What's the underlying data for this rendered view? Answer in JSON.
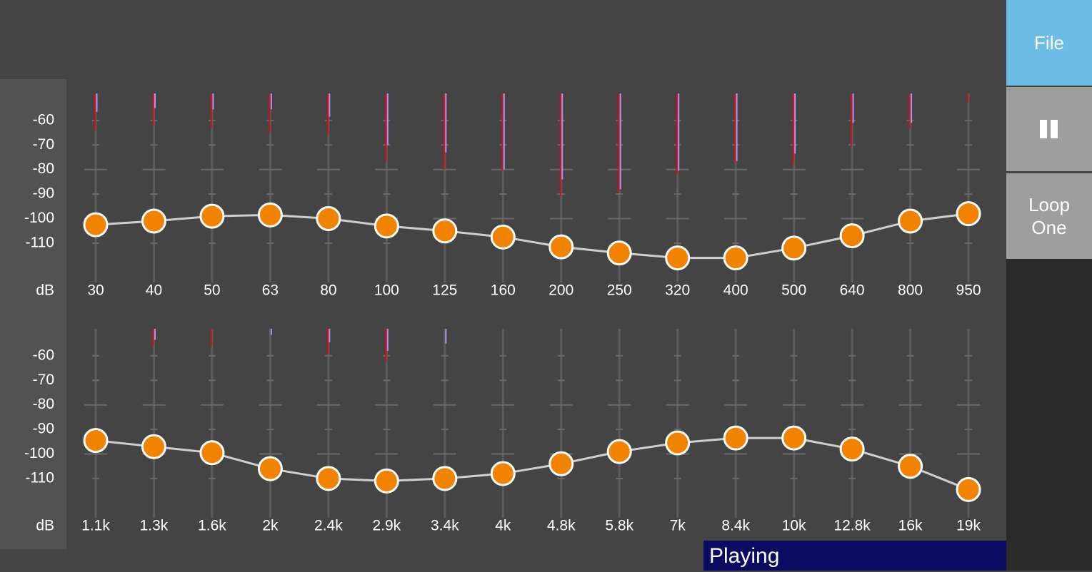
{
  "chart_data": [
    {
      "type": "line",
      "y_label": "dB",
      "categories": [
        "30",
        "40",
        "50",
        "63",
        "80",
        "100",
        "125",
        "160",
        "200",
        "250",
        "320",
        "400",
        "500",
        "640",
        "800",
        "950"
      ],
      "values": [
        -102.5,
        -101,
        -99,
        -98.5,
        -100,
        -103,
        -105,
        -107.5,
        -111.5,
        -114,
        -116,
        -116,
        -112,
        -107,
        -101,
        -98
      ],
      "peaks": [
        -64,
        -62,
        -63,
        -65,
        -66,
        -76.5,
        -80,
        -80.5,
        -91,
        -89.5,
        -82,
        -77,
        -78,
        -70.5,
        -63,
        -52.5
      ],
      "levels": [
        -56.5,
        -55,
        -55.5,
        -55.5,
        -58.5,
        -70,
        -73,
        -80,
        -84,
        -88,
        -80.5,
        -76.5,
        -73.5,
        -61,
        -61,
        null
      ],
      "ylim": [
        -126,
        -49
      ],
      "yticks": [
        -60,
        -70,
        -80,
        -90,
        -100,
        -110
      ],
      "color": "#f28300",
      "peak_color": "#d0101c",
      "level_color": "#b590f0"
    },
    {
      "type": "line",
      "y_label": "dB",
      "categories": [
        "1.1k",
        "1.3k",
        "1.6k",
        "2k",
        "2.4k",
        "2.9k",
        "3.4k",
        "4k",
        "4.8k",
        "5.8k",
        "7k",
        "8.4k",
        "10k",
        "12.8k",
        "16k",
        "19k"
      ],
      "values": [
        -94.5,
        -97,
        -99.5,
        -106,
        -110,
        -111,
        -110,
        -108,
        -104,
        -99,
        -95.5,
        -93.5,
        -93.5,
        -98,
        -105,
        -114.5
      ],
      "peaks": [
        null,
        -56,
        -56,
        null,
        -59.5,
        -62.5,
        null,
        null,
        null,
        null,
        null,
        null,
        null,
        null,
        null,
        null
      ],
      "levels": [
        null,
        -53.5,
        null,
        -51.5,
        -54.5,
        -58,
        -55,
        null,
        null,
        null,
        null,
        null,
        null,
        null,
        null,
        null
      ],
      "ylim": [
        -126,
        -49
      ],
      "yticks": [
        -60,
        -70,
        -80,
        -90,
        -100,
        -110
      ],
      "color": "#f28300",
      "peak_color": "#d0101c",
      "level_color": "#b590f0"
    }
  ],
  "sidebar": {
    "file": "File",
    "loop": "Loop\nOne"
  },
  "status": "Playing"
}
